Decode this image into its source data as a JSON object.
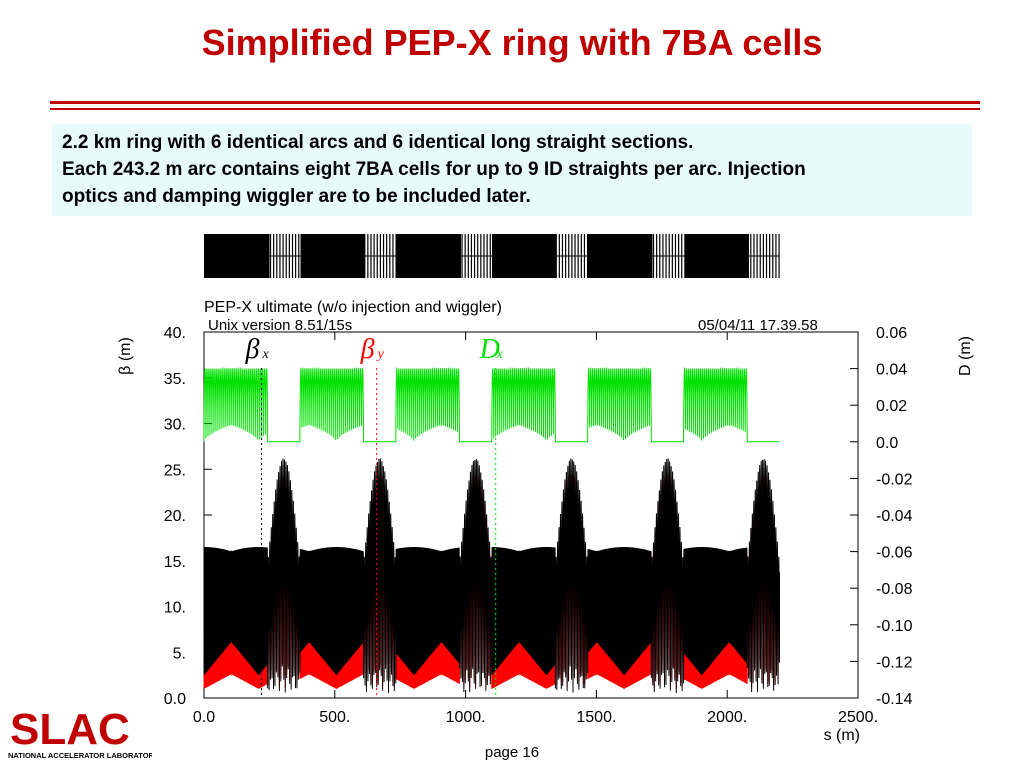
{
  "slide": {
    "title": "Simplified PEP-X ring with 7BA cells",
    "info_lines": [
      "2.2 km ring with 6 identical arcs and 6 identical long straight sections.",
      "Each 243.2 m arc contains eight 7BA cells for up to 9 ID straights per arc. Injection",
      "optics and damping wiggler are to be included later."
    ],
    "page": "page 16"
  },
  "logo": {
    "text": "SLAC",
    "subtitle": "NATIONAL ACCELERATOR LABORATORY",
    "color": "#c00000"
  },
  "plot_header": {
    "title": "PEP-X ultimate (w/o injection and wiggler)",
    "version": "Unix version 8.51/15s",
    "timestamp": "05/04/11  17.39.58"
  },
  "chart_data": {
    "type": "line",
    "xlabel": "s (m)",
    "ylabel_left": "β (m)",
    "ylabel_right": "D (m)",
    "xlim": [
      0,
      2500
    ],
    "ylim_left": [
      0,
      40
    ],
    "ylim_right": [
      -0.14,
      0.06
    ],
    "x_ticks": [
      "0.0",
      "500.",
      "1000.",
      "1500.",
      "2000.",
      "2500."
    ],
    "y_left_ticks": [
      "0.0",
      "5.",
      "10.",
      "15.",
      "20.",
      "25.",
      "30.",
      "35.",
      "40."
    ],
    "y_right_ticks": [
      "-0.14",
      "-0.12",
      "-0.10",
      "-0.08",
      "-0.06",
      "-0.04",
      "-0.02",
      "0.0",
      "0.02",
      "0.04",
      "0.06"
    ],
    "ring_length": 2200,
    "n_superperiods": 6,
    "arc_length": 243.2,
    "cells_per_arc": 8,
    "series": [
      {
        "name": "βx",
        "label": "β",
        "sub": "x",
        "color": "#000000",
        "axis": "left",
        "arc_peak": 16.5,
        "arc_min": 2.5,
        "straight_peak": 26.2,
        "straight_min": 0.5
      },
      {
        "name": "βy",
        "label": "β",
        "sub": "y",
        "color": "#ff0000",
        "axis": "left",
        "arc_peak": 7.2,
        "arc_min": 1.0,
        "straight_peak": 24.5,
        "straight_min": 1.0
      },
      {
        "name": "Dx",
        "label": "D",
        "sub": "x",
        "color": "#00e000",
        "axis": "right",
        "arc_peak": 0.04,
        "arc_min": 0.0,
        "straight_peak": 0.0,
        "straight_min": 0.0
      }
    ],
    "legend_x": [
      220,
      660,
      1115
    ],
    "lattice_strip": {
      "arc_color": "#000000",
      "straight_color": "#000000"
    }
  }
}
